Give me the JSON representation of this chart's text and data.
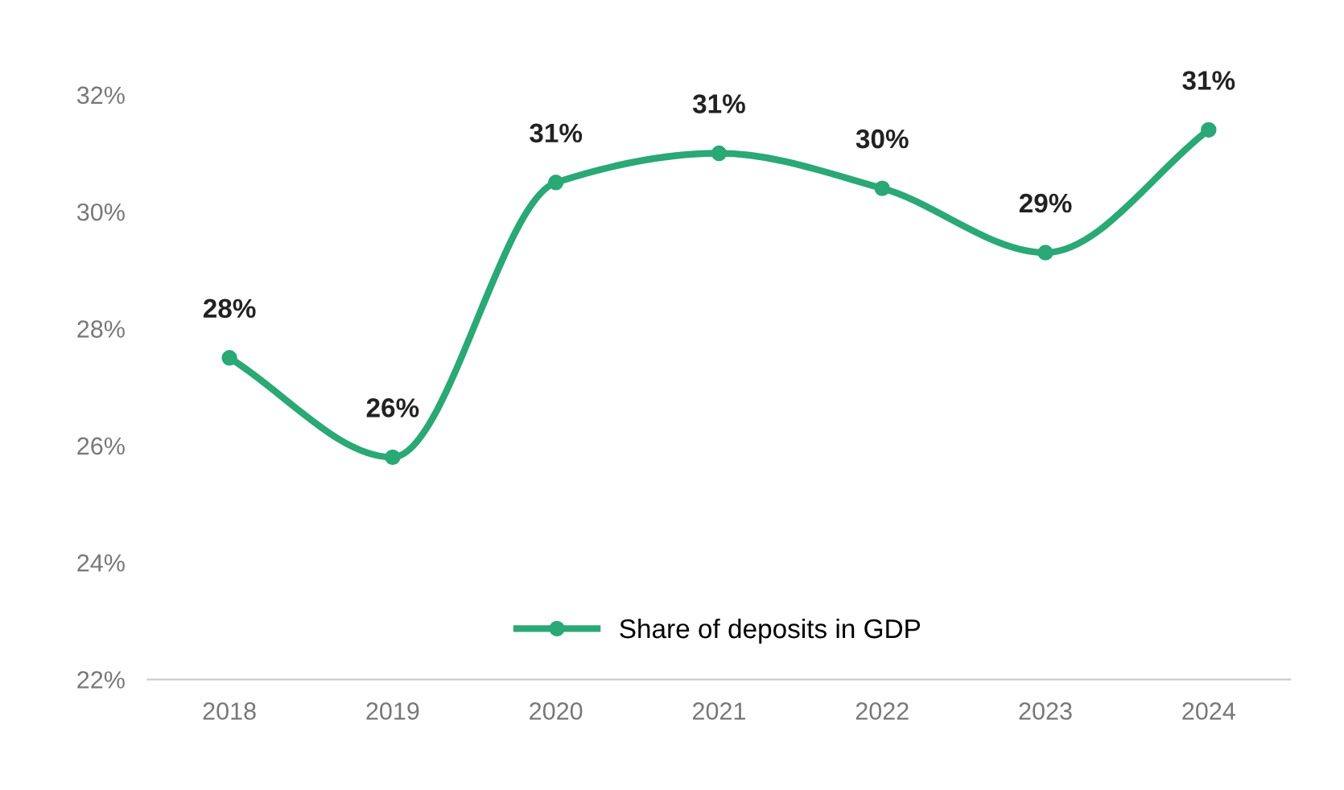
{
  "chart_data": {
    "type": "line",
    "categories": [
      "2018",
      "2019",
      "2020",
      "2021",
      "2022",
      "2023",
      "2024"
    ],
    "series": [
      {
        "name": "Share of deposits in GDP",
        "color": "#2aa876",
        "values": [
          27.5,
          25.8,
          30.5,
          31.0,
          30.4,
          29.3,
          31.4
        ],
        "value_labels": [
          "28%",
          "26%",
          "31%",
          "31%",
          "30%",
          "29%",
          "31%"
        ]
      }
    ],
    "ylim": [
      22,
      32
    ],
    "yticks": [
      {
        "value": 22,
        "label": "22%"
      },
      {
        "value": 24,
        "label": "24%"
      },
      {
        "value": 26,
        "label": "26%"
      },
      {
        "value": 28,
        "label": "28%"
      },
      {
        "value": 30,
        "label": "30%"
      },
      {
        "value": 32,
        "label": "32%"
      }
    ],
    "grid": false,
    "legend": "bottom",
    "marker": "circle",
    "line_style": "solid"
  }
}
